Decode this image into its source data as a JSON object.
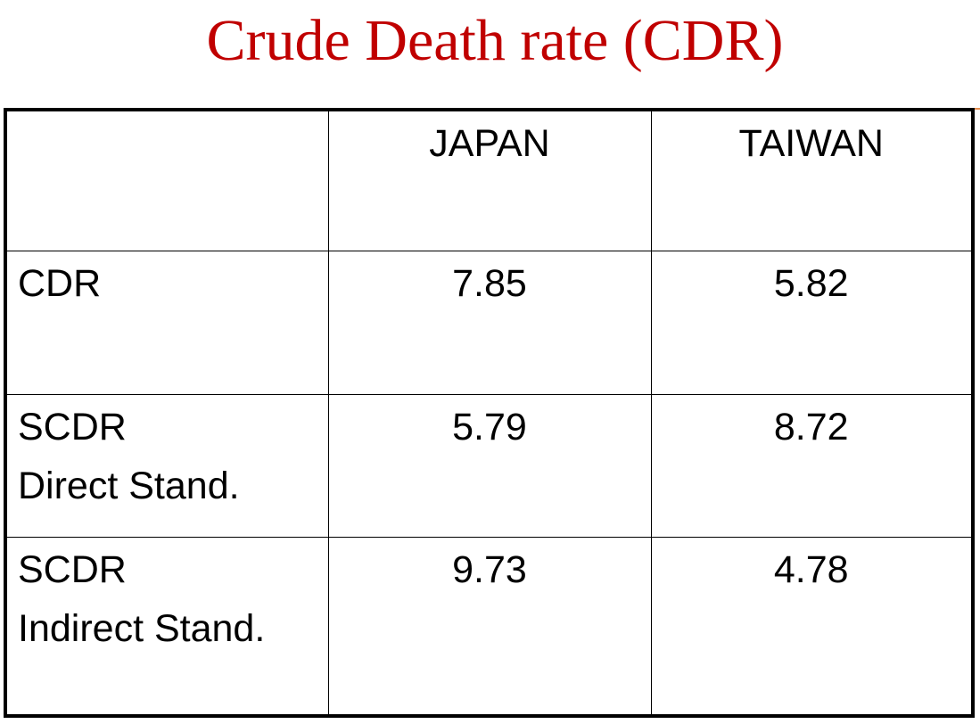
{
  "slide": {
    "title": "Crude Death rate (CDR)"
  },
  "table": {
    "columns": [
      "",
      "JAPAN",
      "TAIWAN"
    ],
    "rows": [
      {
        "label_line1": "CDR",
        "label_line2": "",
        "japan": "7.85",
        "taiwan": "5.82"
      },
      {
        "label_line1": "SCDR",
        "label_line2": "Direct Stand.",
        "japan": "5.79",
        "taiwan": "8.72"
      },
      {
        "label_line1": "SCDR",
        "label_line2": "Indirect Stand.",
        "japan": "9.73",
        "taiwan": "4.78"
      }
    ]
  },
  "colors": {
    "title": "#c00000",
    "accent": "#e38c4e",
    "border": "#000000"
  }
}
